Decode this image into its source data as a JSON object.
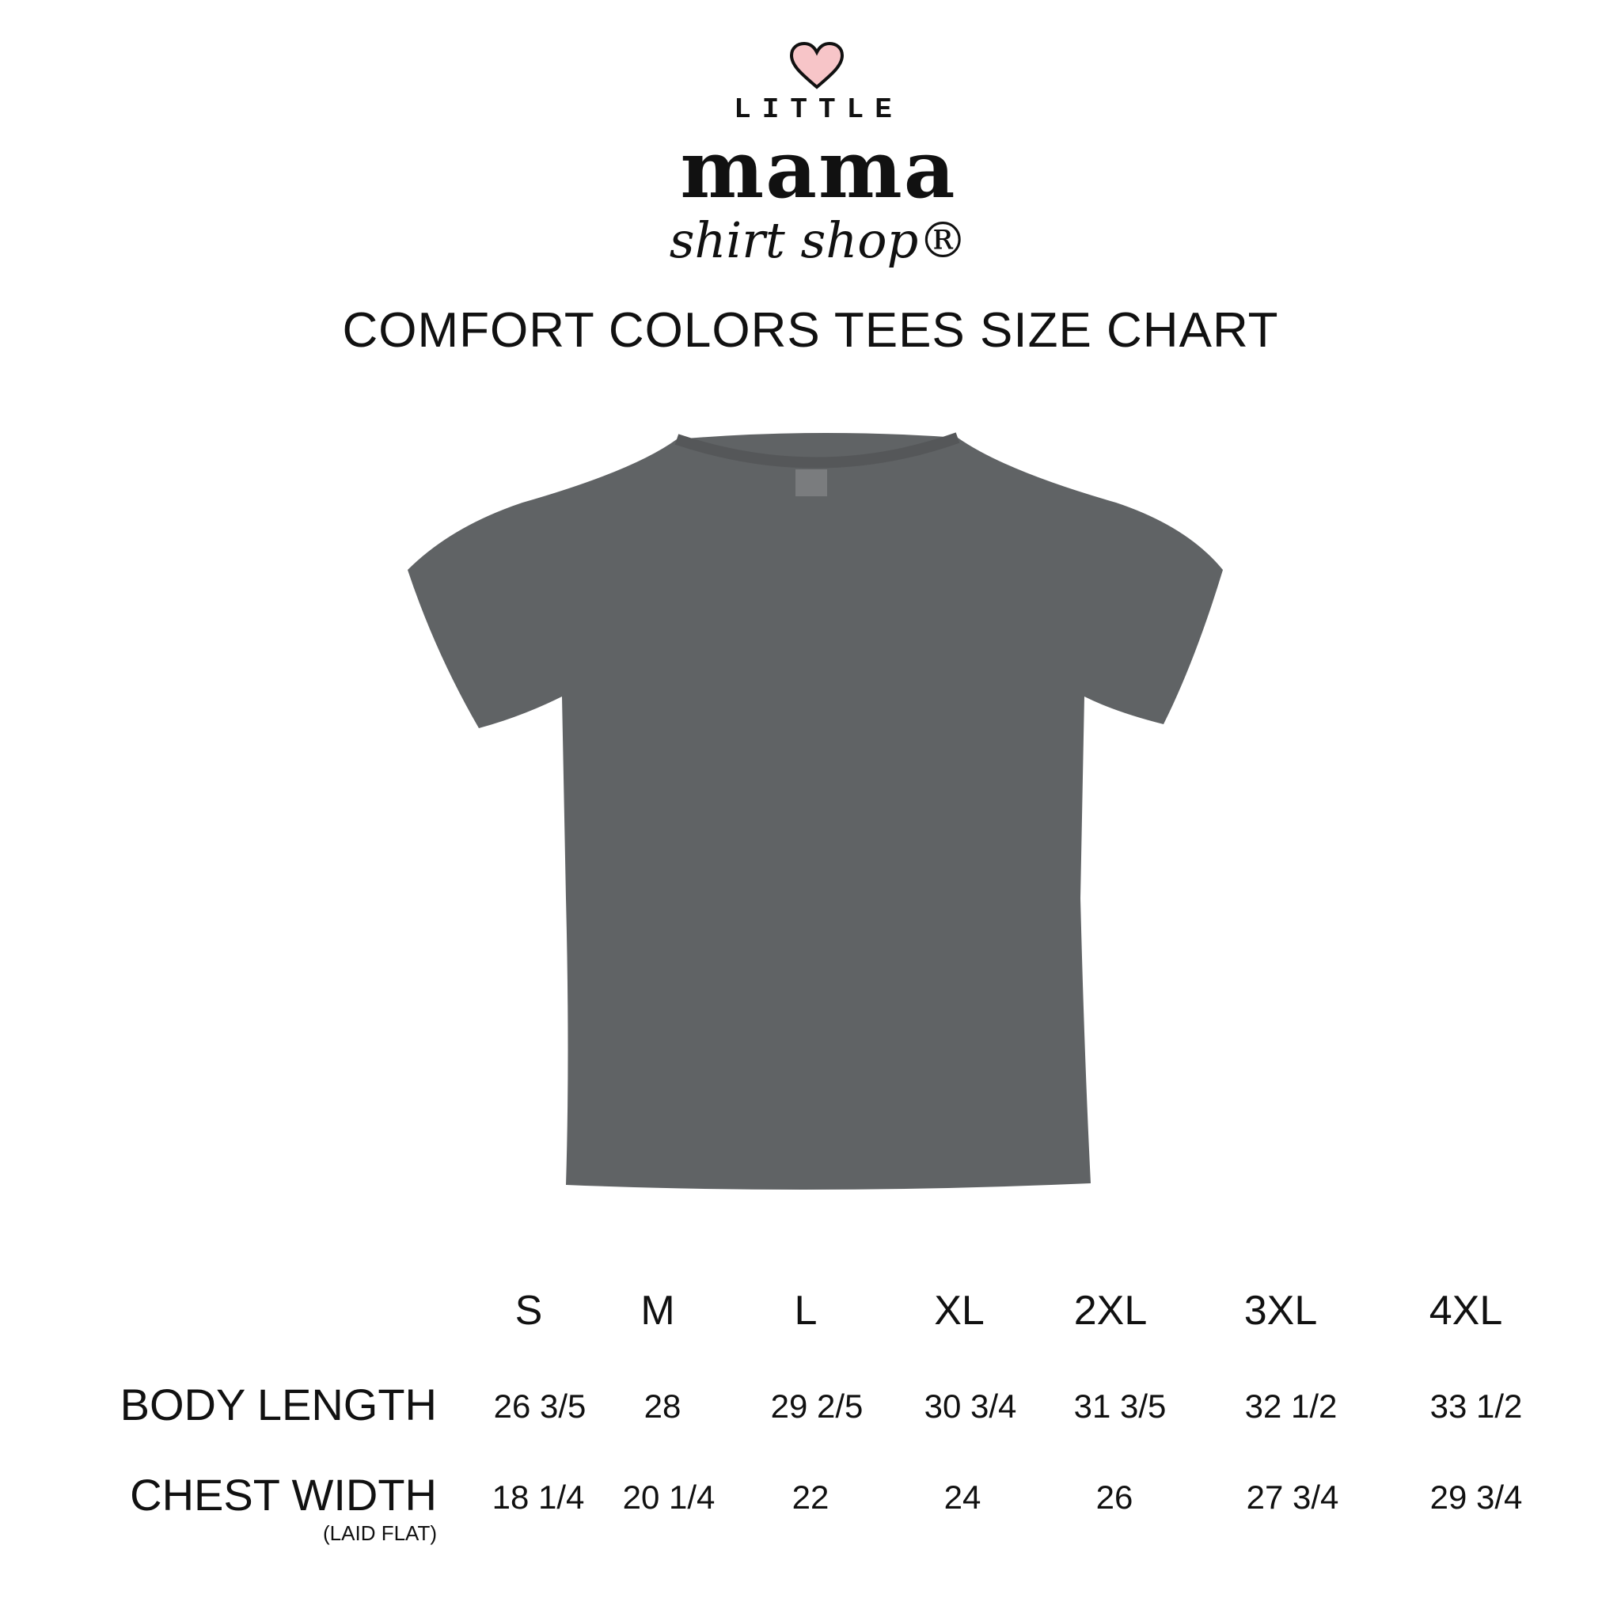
{
  "brand": {
    "line1": "LITTLE",
    "line2": "mama",
    "line3": "shirt shop®",
    "heart_color": "#f7c5c8"
  },
  "title": "COMFORT COLORS TEES SIZE CHART",
  "shirt": {
    "color": "#606365"
  },
  "chart_data": {
    "type": "table",
    "columns": [
      "S",
      "M",
      "L",
      "XL",
      "2XL",
      "3XL",
      "4XL"
    ],
    "rows": [
      {
        "label": "BODY LENGTH",
        "note": "",
        "values": [
          "26 3/5",
          "28",
          "29 2/5",
          "30 3/4",
          "31 3/5",
          "32 1/2",
          "33 1/2"
        ]
      },
      {
        "label": "CHEST WIDTH",
        "note": "(LAID FLAT)",
        "values": [
          "18 1/4",
          "20 1/4",
          "22",
          "24",
          "26",
          "27 3/4",
          "29 3/4"
        ]
      }
    ]
  }
}
